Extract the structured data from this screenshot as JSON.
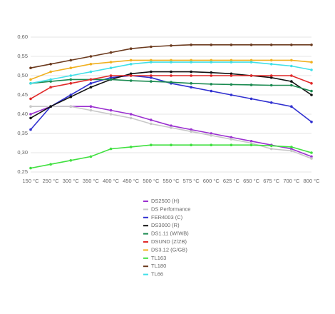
{
  "chart_data": {
    "type": "line",
    "categories": [
      "150 °C",
      "250 °C",
      "300 °C",
      "350 °C",
      "400 °C",
      "450 °C",
      "500 °C",
      "550 °C",
      "575 °C",
      "600 °C",
      "625 °C",
      "650 °C",
      "675 °C",
      "700 °C",
      "800 °C"
    ],
    "ylim": [
      0.25,
      0.6
    ],
    "yticks": [
      {
        "value": 0.25,
        "label": "0,25"
      },
      {
        "value": 0.3,
        "label": "0,30"
      },
      {
        "value": 0.35,
        "label": "0,35"
      },
      {
        "value": 0.4,
        "label": "0,40"
      },
      {
        "value": 0.45,
        "label": "0,45"
      },
      {
        "value": 0.5,
        "label": "0,50"
      },
      {
        "value": 0.55,
        "label": "0,55"
      },
      {
        "value": 0.6,
        "label": "0,60"
      }
    ],
    "grid": true,
    "series": [
      {
        "name": "DS2500 (H)",
        "color": "#9b30d0",
        "values": [
          0.4,
          0.42,
          0.42,
          0.42,
          0.41,
          0.4,
          0.385,
          0.37,
          0.36,
          0.35,
          0.34,
          0.33,
          0.32,
          0.31,
          0.29
        ]
      },
      {
        "name": "DS Performance",
        "color": "#c8c8c8",
        "values": [
          0.42,
          0.42,
          0.42,
          0.41,
          0.4,
          0.39,
          0.375,
          0.365,
          0.355,
          0.345,
          0.335,
          0.325,
          0.31,
          0.305,
          0.285
        ]
      },
      {
        "name": "FER4003 (C)",
        "color": "#3030d0",
        "values": [
          0.36,
          0.42,
          0.45,
          0.48,
          0.495,
          0.5,
          0.495,
          0.48,
          0.47,
          0.46,
          0.45,
          0.44,
          0.43,
          0.42,
          0.38
        ]
      },
      {
        "name": "DS3000 (R)",
        "color": "#111111",
        "values": [
          0.39,
          0.42,
          0.445,
          0.47,
          0.49,
          0.505,
          0.51,
          0.51,
          0.51,
          0.508,
          0.505,
          0.5,
          0.495,
          0.485,
          0.45
        ]
      },
      {
        "name": "DS1.11 (W/WB)",
        "color": "#1a8a50",
        "values": [
          0.48,
          0.485,
          0.49,
          0.49,
          0.49,
          0.487,
          0.485,
          0.483,
          0.48,
          0.478,
          0.477,
          0.476,
          0.475,
          0.475,
          0.46
        ]
      },
      {
        "name": "DSUND (Z/ZB)",
        "color": "#e02828",
        "values": [
          0.44,
          0.47,
          0.48,
          0.49,
          0.5,
          0.5,
          0.5,
          0.5,
          0.5,
          0.5,
          0.5,
          0.5,
          0.5,
          0.5,
          0.48
        ]
      },
      {
        "name": "DS3.12 (G/GB)",
        "color": "#f0b020",
        "values": [
          0.49,
          0.51,
          0.52,
          0.53,
          0.535,
          0.54,
          0.54,
          0.54,
          0.54,
          0.54,
          0.54,
          0.54,
          0.54,
          0.54,
          0.535
        ]
      },
      {
        "name": "TL163",
        "color": "#40e040",
        "values": [
          0.26,
          0.27,
          0.28,
          0.29,
          0.31,
          0.315,
          0.32,
          0.32,
          0.32,
          0.32,
          0.32,
          0.32,
          0.318,
          0.315,
          0.3
        ]
      },
      {
        "name": "TL180",
        "color": "#6b3a1e",
        "values": [
          0.52,
          0.53,
          0.54,
          0.55,
          0.56,
          0.57,
          0.575,
          0.578,
          0.58,
          0.58,
          0.58,
          0.58,
          0.58,
          0.58,
          0.58
        ]
      },
      {
        "name": "TL66",
        "color": "#40e0e8",
        "values": [
          0.48,
          0.49,
          0.5,
          0.51,
          0.52,
          0.53,
          0.535,
          0.535,
          0.535,
          0.535,
          0.535,
          0.535,
          0.53,
          0.525,
          0.515
        ]
      }
    ]
  }
}
